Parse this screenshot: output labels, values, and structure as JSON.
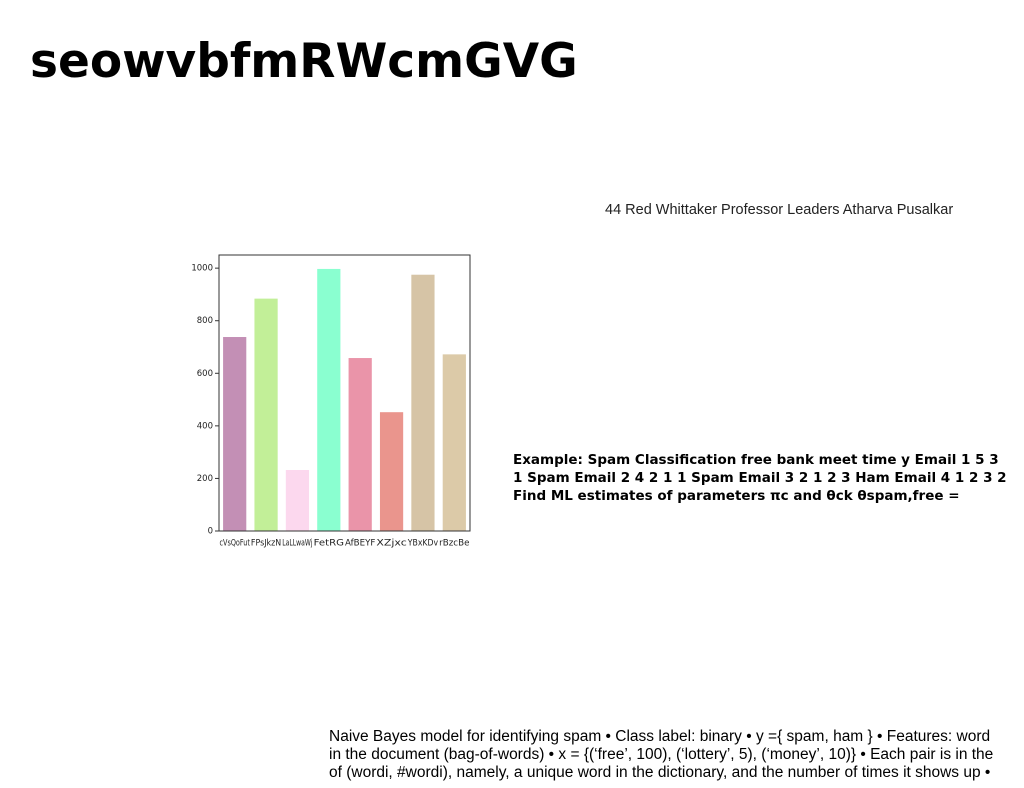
{
  "title": "seowvbfmRWcmGVG",
  "caption": "44 Red Whittaker Professor Leaders Atharva Pusalkar",
  "example_lines": [
    "Example: Spam Classification free bank meet time y Email 1 5 3",
    "1 Spam Email 2 4 2 1 1 Spam Email 3 2 1 2 3 Ham Email 4 1 2 3 2",
    "Find ML estimates of parameters πc and θck θspam,free ="
  ],
  "body_lines": [
    "Naive Bayes model for identifying spam • Class label: binary • y ={ spam, ham } • Features: word",
    "in the document (bag-of-words) • x = {(‘free’, 100), (‘lottery’, 5), (‘money’, 10)} • Each pair is in the",
    "of (wordi, #wordi), namely, a unique word in the dictionary, and the number of times it shows up •"
  ],
  "chart_data": {
    "type": "bar",
    "categories": [
      "cVsQoFut",
      "FPsJkzN",
      "LaLLwaWj",
      "FetRG",
      "AfBEYF",
      "XZjxc",
      "YBxKDv",
      "rBzcBe"
    ],
    "values": [
      738,
      884,
      232,
      997,
      658,
      452,
      975,
      672
    ],
    "colors": [
      "#c38fb5",
      "#c2ef98",
      "#fcd8ee",
      "#8affd0",
      "#ea94a9",
      "#ea958d",
      "#d6c4a6",
      "#dccaa8"
    ],
    "ylim": [
      0,
      1050
    ],
    "yticks": [
      0,
      200,
      400,
      600,
      800,
      1000
    ],
    "grid": false
  }
}
